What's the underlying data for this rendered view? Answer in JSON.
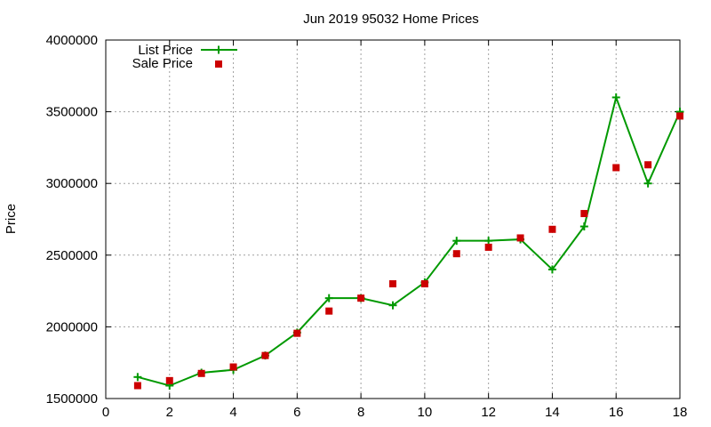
{
  "chart_data": {
    "type": "line",
    "title": "Jun 2019 95032 Home Prices",
    "xlabel": "",
    "ylabel": "Price",
    "xlim": [
      0,
      18
    ],
    "ylim": [
      1500000,
      4000000
    ],
    "xticks": [
      0,
      2,
      4,
      6,
      8,
      10,
      12,
      14,
      16,
      18
    ],
    "yticks": [
      1500000,
      2000000,
      2500000,
      3000000,
      3500000,
      4000000
    ],
    "grid": true,
    "legend_position": "top-left",
    "series": [
      {
        "name": "List Price",
        "style": "line-with-plus-markers",
        "color": "#009900",
        "x": [
          1,
          2,
          3,
          4,
          5,
          6,
          7,
          8,
          9,
          10,
          11,
          12,
          13,
          14,
          15,
          16,
          17,
          18
        ],
        "y": [
          1650000,
          1590000,
          1680000,
          1700000,
          1800000,
          1960000,
          2200000,
          2200000,
          2150000,
          2310000,
          2600000,
          2600000,
          2610000,
          2400000,
          2700000,
          3600000,
          3000000,
          3500000
        ]
      },
      {
        "name": "Sale Price",
        "style": "square-markers",
        "color": "#cc0000",
        "x": [
          1,
          2,
          3,
          4,
          5,
          6,
          7,
          8,
          9,
          10,
          11,
          12,
          13,
          14,
          15,
          16,
          17,
          18
        ],
        "y": [
          1590000,
          1625000,
          1675000,
          1720000,
          1800000,
          1955000,
          2110000,
          2200000,
          2300000,
          2300000,
          2510000,
          2555000,
          2620000,
          2680000,
          2790000,
          3110000,
          3130000,
          3470000
        ]
      }
    ]
  }
}
